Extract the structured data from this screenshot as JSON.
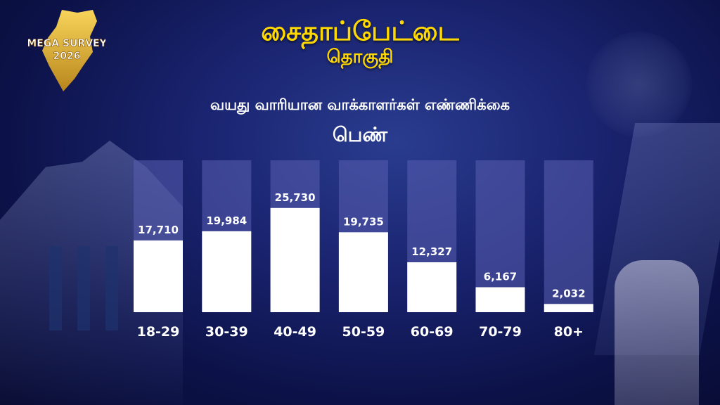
{
  "header": {
    "title": "சைதாப்பேட்டை",
    "subtitle": "தொகுதி",
    "heading": "வயது வாரியான வாக்காளர்கள் எண்ணிக்கை",
    "gender": "பெண்"
  },
  "logo": {
    "line1": "MEGA SURVEY",
    "line2": "2026",
    "icon": "tamil-nadu-map-icon"
  },
  "colors": {
    "title": "#ffd800",
    "bar_fill": "#ffffff",
    "bar_track": "#5a5fb0",
    "text": "#ffffff"
  },
  "chart_data": {
    "type": "bar",
    "categories": [
      "18-29",
      "30-39",
      "40-49",
      "50-59",
      "60-69",
      "70-79",
      "80+"
    ],
    "values": [
      17710,
      19984,
      25730,
      19735,
      12327,
      6167,
      2032
    ],
    "value_labels": [
      "17,710",
      "19,984",
      "25,730",
      "19,735",
      "12,327",
      "6,167",
      "2,032"
    ],
    "ylim": [
      0,
      37500
    ],
    "grid": false,
    "legend": "none"
  }
}
